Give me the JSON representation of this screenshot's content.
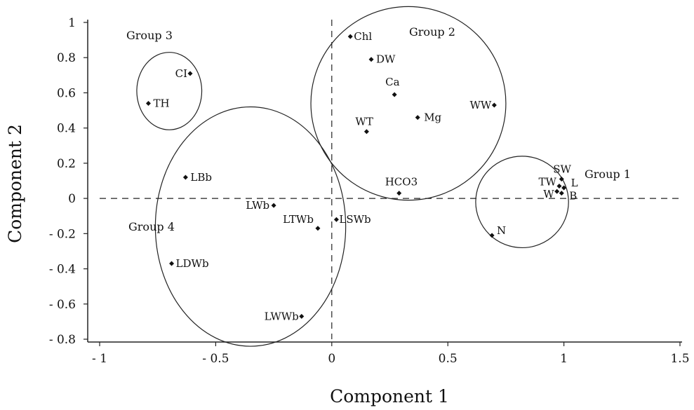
{
  "chart_data": {
    "type": "scatter",
    "title": "",
    "xlabel": "Component 1",
    "ylabel": "Component 2",
    "xlim": [
      -1,
      1.5
    ],
    "ylim": [
      -0.8,
      1
    ],
    "x_ticks": [
      -1,
      -0.5,
      0,
      0.5,
      1,
      1.5
    ],
    "x_tick_labels": [
      "- 1",
      "- 0.5",
      "0",
      "0.5",
      "1",
      "1.5"
    ],
    "y_ticks": [
      1,
      0.8,
      0.6,
      0.4,
      0.2,
      0,
      -0.2,
      -0.4,
      -0.6,
      -0.8
    ],
    "y_tick_labels": [
      "1",
      "0.8",
      "0.6",
      "0.4",
      "0.2",
      "0",
      "- 0.2",
      "- 0.4",
      "- 0.6",
      "- 0.8"
    ],
    "grid": false,
    "reference_lines": "dashed at x=0 and y=0",
    "points": [
      {
        "label": "Chl",
        "x": 0.08,
        "y": 0.92
      },
      {
        "label": "DW",
        "x": 0.17,
        "y": 0.79
      },
      {
        "label": "Ca",
        "x": 0.27,
        "y": 0.59
      },
      {
        "label": "WW",
        "x": 0.7,
        "y": 0.53
      },
      {
        "label": "Mg",
        "x": 0.37,
        "y": 0.46
      },
      {
        "label": "WT",
        "x": 0.15,
        "y": 0.38
      },
      {
        "label": "HCO3",
        "x": 0.29,
        "y": 0.03
      },
      {
        "label": "CI",
        "x": -0.61,
        "y": 0.71
      },
      {
        "label": "TH",
        "x": -0.79,
        "y": 0.54
      },
      {
        "label": "LBb",
        "x": -0.63,
        "y": 0.12
      },
      {
        "label": "LWb",
        "x": -0.25,
        "y": -0.04
      },
      {
        "label": "LTWb",
        "x": -0.06,
        "y": -0.17
      },
      {
        "label": "LSWb",
        "x": 0.02,
        "y": -0.12
      },
      {
        "label": "LDWb",
        "x": -0.69,
        "y": -0.37
      },
      {
        "label": "LWWb",
        "x": -0.13,
        "y": -0.67
      },
      {
        "label": "SW",
        "x": 0.99,
        "y": 0.11
      },
      {
        "label": "TW",
        "x": 0.98,
        "y": 0.07
      },
      {
        "label": "L",
        "x": 1.0,
        "y": 0.06
      },
      {
        "label": "B",
        "x": 0.99,
        "y": 0.03
      },
      {
        "label": "W",
        "x": 0.97,
        "y": 0.04
      },
      {
        "label": "N",
        "x": 0.69,
        "y": -0.21
      }
    ],
    "groups": [
      {
        "name": "Group 1",
        "cx": 0.82,
        "cy": -0.02,
        "rx": 0.2,
        "ry": 0.26
      },
      {
        "name": "Group 2",
        "cx": 0.33,
        "cy": 0.54,
        "rx": 0.42,
        "ry": 0.55
      },
      {
        "name": "Group 3",
        "cx": -0.7,
        "cy": 0.61,
        "rx": 0.14,
        "ry": 0.22
      },
      {
        "name": "Group 4",
        "cx": -0.35,
        "cy": -0.16,
        "rx": 0.41,
        "ry": 0.68
      }
    ]
  }
}
